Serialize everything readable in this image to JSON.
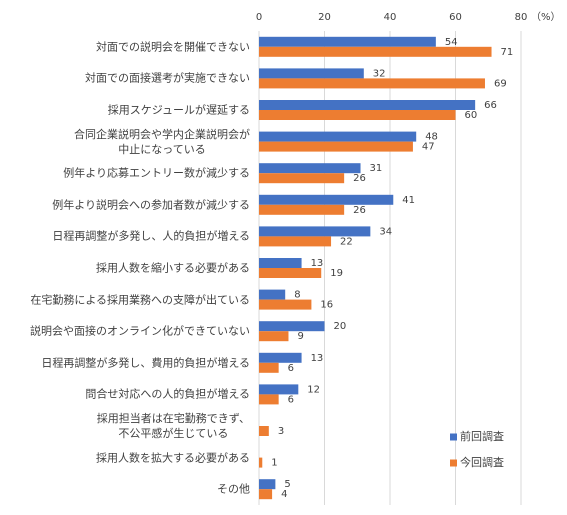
{
  "chart_data": {
    "type": "barh",
    "categories": [
      "対面での説明会を開催できない",
      "対面での面接選考が実施できない",
      "採用スケジュールが遅延する",
      "合同企業説明会や学内企業説明会が\n中止になっている",
      "例年より応募エントリー数が減少する",
      "例年より説明会への参加者数が減少する",
      "日程再調整が多発し、人的負担が増える",
      "採用人数を縮小する必要がある",
      "在宅勤務による採用業務への支障が出ている",
      "説明会や面接のオンライン化ができていない",
      "日程再調整が多発し、費用的負担が増える",
      "問合せ対応への人的負担が増える",
      "採用担当者は在宅勤務できず、\n不公平感が生じている",
      "採用人数を拡大する必要がある",
      "その他"
    ],
    "series": [
      {
        "name": "前回調査",
        "color": "#4472c4",
        "values": [
          54,
          32,
          66,
          48,
          31,
          41,
          34,
          13,
          8,
          20,
          13,
          12,
          null,
          null,
          5
        ]
      },
      {
        "name": "今回調査",
        "color": "#ed7d31",
        "values": [
          71,
          69,
          60,
          47,
          26,
          26,
          22,
          19,
          16,
          9,
          6,
          6,
          3,
          1,
          4
        ]
      }
    ],
    "xlim": [
      0,
      80
    ],
    "xticks": [
      0,
      20,
      40,
      60,
      80
    ],
    "x_unit": "（%）",
    "grid": true,
    "legend": "right"
  }
}
